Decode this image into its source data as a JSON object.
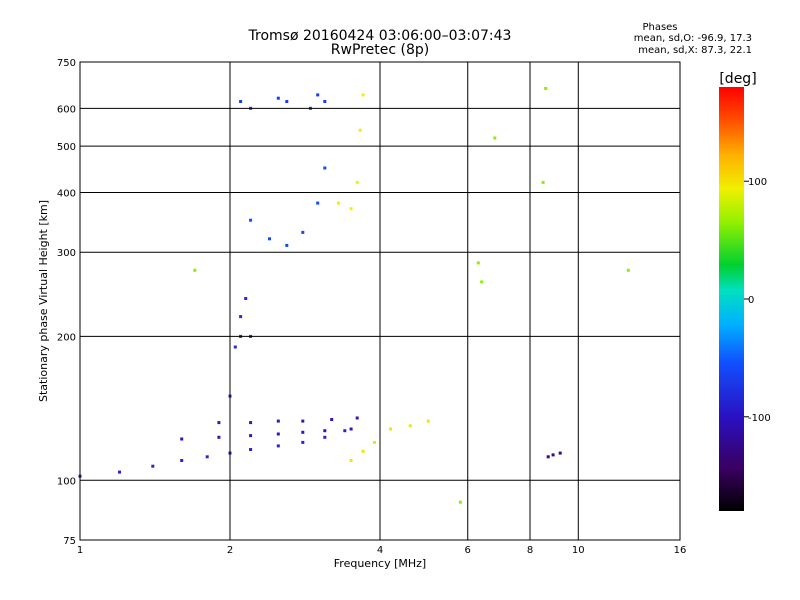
{
  "chart_data": {
    "type": "scatter",
    "title": "Tromsø 20160424 03:06:00–03:07:43",
    "subtitle": "RwPretec (8p)",
    "xlabel": "Frequency [MHz]",
    "ylabel": "Stationary phase Virtual Height [km]",
    "x_scale": "log",
    "y_scale": "log",
    "xlim": [
      1,
      16
    ],
    "ylim": [
      75,
      750
    ],
    "x_ticks": [
      1,
      2,
      4,
      6,
      8,
      10,
      16
    ],
    "y_ticks": [
      75,
      100,
      200,
      300,
      400,
      500,
      600,
      750
    ],
    "grid": true,
    "stats": {
      "heading": "Phases",
      "line_o": "mean, sd,O: -96.9, 17.3",
      "line_x": "mean, sd,X:  87.3, 22.1"
    },
    "colorbar": {
      "label": "[deg]",
      "range": [
        -180,
        180
      ],
      "ticks": [
        100,
        0,
        -100
      ],
      "tick_labels": [
        "100",
        "0",
        "-100"
      ]
    },
    "clusters": [
      {
        "desc": "low E trace",
        "x": [
          1.0,
          1.2,
          1.4,
          1.6,
          1.8,
          2.0,
          2.2,
          2.5,
          2.8,
          3.1,
          3.4
        ],
        "y": [
          102,
          104,
          107,
          110,
          112,
          114,
          116,
          118,
          120,
          123,
          127
        ],
        "phase": -115
      },
      {
        "desc": "E layer band 1",
        "x": [
          1.6,
          1.9,
          2.2,
          2.5,
          2.8,
          3.1,
          3.5
        ],
        "y": [
          122,
          123,
          124,
          125,
          126,
          127,
          128
        ],
        "phase": -125
      },
      {
        "desc": "E layer band 2",
        "x": [
          1.9,
          2.2,
          2.5,
          2.8,
          3.2,
          3.6
        ],
        "y": [
          132,
          132,
          133,
          133,
          134,
          135
        ],
        "phase": -125
      },
      {
        "desc": "F1 vertical streak",
        "x": [
          2.0,
          2.05,
          2.1,
          2.1,
          2.15,
          2.2
        ],
        "y": [
          150,
          190,
          200,
          220,
          240,
          200
        ],
        "phase": -110
      },
      {
        "desc": "F2 cusp",
        "x": [
          2.2,
          2.4,
          2.6,
          2.8,
          3.0,
          3.1
        ],
        "y": [
          350,
          320,
          310,
          330,
          380,
          450
        ],
        "phase": -95
      },
      {
        "desc": "F2 high streaks",
        "x": [
          2.1,
          2.2,
          2.5,
          2.6,
          2.9,
          3.0,
          3.1
        ],
        "y": [
          620,
          600,
          630,
          620,
          600,
          640,
          620
        ],
        "phase": -100
      },
      {
        "desc": "yellow X trace",
        "x": [
          3.3,
          3.5,
          3.6,
          3.65,
          3.7
        ],
        "y": [
          380,
          370,
          420,
          540,
          640
        ],
        "phase": 90
      },
      {
        "desc": "yellow low X",
        "x": [
          3.5,
          3.7,
          3.9,
          4.2,
          4.6,
          5.0
        ],
        "y": [
          110,
          115,
          120,
          128,
          130,
          133
        ],
        "phase": 95
      },
      {
        "desc": "purple low cluster 2",
        "x": [
          8.7,
          8.9,
          9.2
        ],
        "y": [
          112,
          113,
          114
        ],
        "phase": -140
      },
      {
        "desc": "sparse points",
        "x": [
          1.7,
          6.3,
          6.8,
          8.5,
          8.6,
          12.6,
          6.4,
          5.8
        ],
        "y": [
          275,
          285,
          520,
          420,
          660,
          275,
          260,
          90
        ],
        "phase": 40
      }
    ]
  }
}
